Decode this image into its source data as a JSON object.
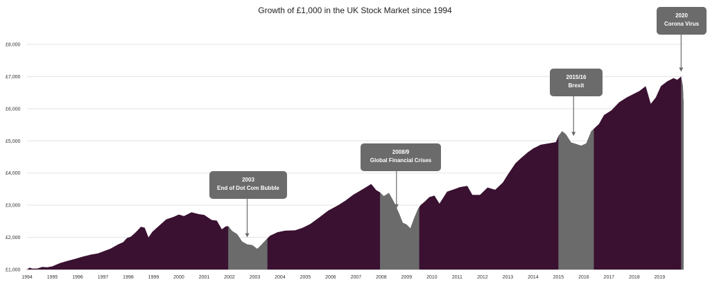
{
  "chart_data": {
    "type": "area",
    "title": "Growth of £1,000 in the UK Stock Market since 1994",
    "xlabel": "",
    "ylabel": "",
    "ylim": [
      1000,
      8000
    ],
    "xlim": [
      1994,
      2019.95
    ],
    "grid": true,
    "legend": "none",
    "yticks": [
      {
        "value": 1000,
        "label": "£1,000"
      },
      {
        "value": 2000,
        "label": "£2,000"
      },
      {
        "value": 3000,
        "label": "£3,000"
      },
      {
        "value": 4000,
        "label": "£4,000"
      },
      {
        "value": 5000,
        "label": "£5,000"
      },
      {
        "value": 6000,
        "label": "£6,000"
      },
      {
        "value": 7000,
        "label": "£7,000"
      },
      {
        "value": 8000,
        "label": "£8,000"
      }
    ],
    "xticks": [
      "1994",
      "1995",
      "1996",
      "1997",
      "1998",
      "1999",
      "2000",
      "2001",
      "2002",
      "2003",
      "2004",
      "2005",
      "2006",
      "2007",
      "2008",
      "2009",
      "2010",
      "2011",
      "2012",
      "2013",
      "2014",
      "2015",
      "2016",
      "2017",
      "2018",
      "2019"
    ],
    "colors": {
      "main": "#3a1131",
      "highlight": "#6b6b6b",
      "callout": "#6b6b6b",
      "grid": "#e3e3e3"
    },
    "series": [
      {
        "values": [
          [
            1994.0,
            1000
          ],
          [
            1994.1,
            1060
          ],
          [
            1994.2,
            1030
          ],
          [
            1994.4,
            1030
          ],
          [
            1994.6,
            1080
          ],
          [
            1994.8,
            1070
          ],
          [
            1995.0,
            1100
          ],
          [
            1995.3,
            1200
          ],
          [
            1995.6,
            1270
          ],
          [
            1995.9,
            1330
          ],
          [
            1996.2,
            1400
          ],
          [
            1996.5,
            1460
          ],
          [
            1996.8,
            1500
          ],
          [
            1997.0,
            1560
          ],
          [
            1997.3,
            1650
          ],
          [
            1997.6,
            1780
          ],
          [
            1997.8,
            1850
          ],
          [
            1997.95,
            1980
          ],
          [
            1998.1,
            2020
          ],
          [
            1998.3,
            2160
          ],
          [
            1998.5,
            2330
          ],
          [
            1998.65,
            2300
          ],
          [
            1998.8,
            2000
          ],
          [
            1998.95,
            2170
          ],
          [
            1999.2,
            2350
          ],
          [
            1999.5,
            2560
          ],
          [
            1999.8,
            2640
          ],
          [
            2000.0,
            2710
          ],
          [
            2000.2,
            2660
          ],
          [
            2000.5,
            2780
          ],
          [
            2000.8,
            2720
          ],
          [
            2001.0,
            2700
          ],
          [
            2001.3,
            2540
          ],
          [
            2001.5,
            2520
          ],
          [
            2001.7,
            2250
          ],
          [
            2001.85,
            2340
          ],
          [
            2001.95,
            2350
          ],
          [
            2002.1,
            2200
          ],
          [
            2002.3,
            2100
          ],
          [
            2002.5,
            1870
          ],
          [
            2002.7,
            1780
          ],
          [
            2002.9,
            1760
          ],
          [
            2003.1,
            1640
          ],
          [
            2003.25,
            1760
          ],
          [
            2003.5,
            1970
          ],
          [
            2003.6,
            2050
          ],
          [
            2003.9,
            2160
          ],
          [
            2004.2,
            2210
          ],
          [
            2004.6,
            2220
          ],
          [
            2004.9,
            2300
          ],
          [
            2005.2,
            2420
          ],
          [
            2005.6,
            2650
          ],
          [
            2005.9,
            2830
          ],
          [
            2006.3,
            3000
          ],
          [
            2006.6,
            3150
          ],
          [
            2006.9,
            3330
          ],
          [
            2007.1,
            3420
          ],
          [
            2007.4,
            3560
          ],
          [
            2007.6,
            3660
          ],
          [
            2007.8,
            3470
          ],
          [
            2007.95,
            3400
          ],
          [
            2008.1,
            3280
          ],
          [
            2008.3,
            3380
          ],
          [
            2008.5,
            3100
          ],
          [
            2008.7,
            2750
          ],
          [
            2008.85,
            2450
          ],
          [
            2009.0,
            2400
          ],
          [
            2009.15,
            2280
          ],
          [
            2009.3,
            2600
          ],
          [
            2009.45,
            2880
          ],
          [
            2009.55,
            3000
          ],
          [
            2009.7,
            3100
          ],
          [
            2009.9,
            3250
          ],
          [
            2010.1,
            3300
          ],
          [
            2010.3,
            3050
          ],
          [
            2010.6,
            3420
          ],
          [
            2010.9,
            3500
          ],
          [
            2011.1,
            3560
          ],
          [
            2011.4,
            3600
          ],
          [
            2011.6,
            3320
          ],
          [
            2011.9,
            3320
          ],
          [
            2012.2,
            3550
          ],
          [
            2012.5,
            3480
          ],
          [
            2012.8,
            3700
          ],
          [
            2013.0,
            3950
          ],
          [
            2013.3,
            4300
          ],
          [
            2013.5,
            4450
          ],
          [
            2013.8,
            4650
          ],
          [
            2014.0,
            4760
          ],
          [
            2014.3,
            4880
          ],
          [
            2014.6,
            4920
          ],
          [
            2014.9,
            4960
          ],
          [
            2015.0,
            5150
          ],
          [
            2015.15,
            5300
          ],
          [
            2015.3,
            5200
          ],
          [
            2015.5,
            4950
          ],
          [
            2015.7,
            4900
          ],
          [
            2015.9,
            4850
          ],
          [
            2016.1,
            4920
          ],
          [
            2016.3,
            5300
          ],
          [
            2016.5,
            5450
          ],
          [
            2016.6,
            5520
          ],
          [
            2016.8,
            5800
          ],
          [
            2017.1,
            5950
          ],
          [
            2017.4,
            6200
          ],
          [
            2017.7,
            6350
          ],
          [
            2017.95,
            6450
          ],
          [
            2018.2,
            6550
          ],
          [
            2018.45,
            6700
          ],
          [
            2018.65,
            6150
          ],
          [
            2018.85,
            6350
          ],
          [
            2019.05,
            6700
          ],
          [
            2019.3,
            6850
          ],
          [
            2019.55,
            6950
          ],
          [
            2019.7,
            6900
          ],
          [
            2019.85,
            7000
          ],
          [
            2019.92,
            6700
          ],
          [
            2019.95,
            6100
          ]
        ]
      }
    ],
    "highlighted_periods": [
      {
        "start": 2001.95,
        "end": 2003.5
      },
      {
        "start": 2007.95,
        "end": 2009.5
      },
      {
        "start": 2015.0,
        "end": 2016.4
      },
      {
        "start": 2019.85,
        "end": 2019.95
      }
    ],
    "annotations": [
      {
        "lines": [
          "2003",
          "End of Dot Com Bubble"
        ],
        "x": 2002.7,
        "y": 2000
      },
      {
        "lines": [
          "2008/9",
          "Global Financial Crises"
        ],
        "x": 2008.6,
        "y": 2900
      },
      {
        "lines": [
          "2015/16",
          "Brexit"
        ],
        "x": 2015.6,
        "y": 5150
      },
      {
        "lines": [
          "2020",
          "Corona Virus"
        ],
        "x": 2019.85,
        "y": 7150
      }
    ]
  }
}
